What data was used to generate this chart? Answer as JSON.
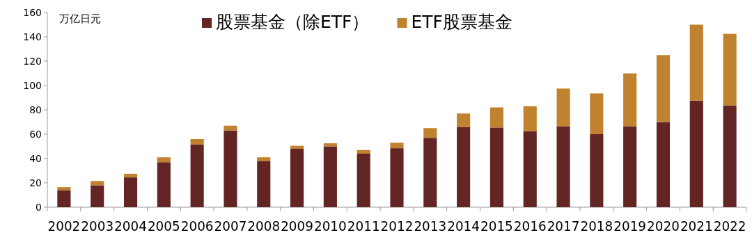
{
  "chart_data": {
    "type": "bar",
    "stacked": true,
    "ylabel": "万亿日元",
    "categories": [
      "2002",
      "2003",
      "2004",
      "2005",
      "2006",
      "2007",
      "2008",
      "2009",
      "2010",
      "2011",
      "2012",
      "2013",
      "2014",
      "2015",
      "2016",
      "2017",
      "2018",
      "2019",
      "2020",
      "2021",
      "2022"
    ],
    "series": [
      {
        "name": "股票基金（除ETF）",
        "color": "#632523",
        "values": [
          14,
          18,
          24.5,
          37,
          51.5,
          63,
          38,
          48,
          50,
          44,
          48.5,
          57,
          66,
          65.5,
          62.5,
          66.5,
          60,
          66.5,
          70,
          87.5,
          83.5
        ]
      },
      {
        "name": "ETF股票基金",
        "color": "#c0822f",
        "values": [
          2.5,
          3.5,
          3,
          4,
          4.5,
          4,
          3,
          2.5,
          2.5,
          3,
          4.5,
          8,
          11,
          16.5,
          20.5,
          31,
          33.5,
          43.5,
          55,
          62.5,
          59
        ]
      }
    ],
    "ylim": [
      0,
      160
    ],
    "yticks": [
      0,
      20,
      40,
      60,
      80,
      100,
      120,
      140,
      160
    ],
    "legend": "top",
    "grid": false
  }
}
